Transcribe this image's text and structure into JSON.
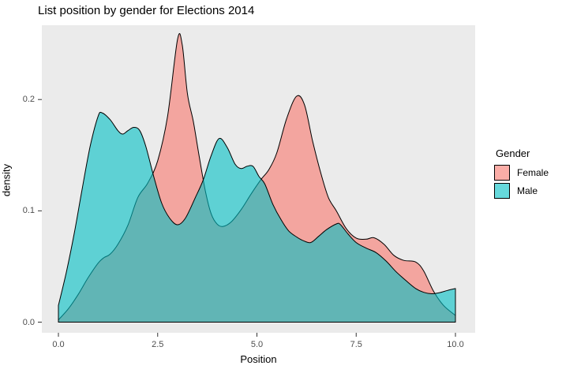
{
  "page": {
    "title": "List position by gender for Elections 2014"
  },
  "chart_data": {
    "type": "area",
    "subtype": "overlaid-density",
    "title": "List position by gender for Elections 2014",
    "xlabel": "Position",
    "ylabel": "density",
    "xlim": [
      0,
      10
    ],
    "ylim": [
      0,
      0.267
    ],
    "grid": false,
    "panel_bg": "#EBEBEB",
    "outline_color": "#000000",
    "tick_label_color": "#4d4d4d",
    "fill_alpha": 0.6,
    "x_ticks": {
      "values": [
        0,
        2.5,
        5,
        7.5,
        10
      ],
      "labels": [
        "0.0",
        "2.5",
        "5.0",
        "7.5",
        "10.0"
      ]
    },
    "y_ticks": {
      "values": [
        0,
        0.1,
        0.2
      ],
      "labels": [
        "0.0",
        "0.1",
        "0.2"
      ]
    },
    "legend": {
      "title": "Gender",
      "position": "right"
    },
    "series": [
      {
        "name": "Female",
        "color": "#F8766D",
        "points": [
          [
            0,
            0.002
          ],
          [
            0.25,
            0.012
          ],
          [
            0.5,
            0.025
          ],
          [
            0.75,
            0.04
          ],
          [
            1.0,
            0.053
          ],
          [
            1.15,
            0.058
          ],
          [
            1.3,
            0.061
          ],
          [
            1.5,
            0.07
          ],
          [
            1.75,
            0.087
          ],
          [
            2.0,
            0.112
          ],
          [
            2.25,
            0.125
          ],
          [
            2.5,
            0.145
          ],
          [
            2.75,
            0.185
          ],
          [
            3.0,
            0.254
          ],
          [
            3.12,
            0.249
          ],
          [
            3.25,
            0.205
          ],
          [
            3.4,
            0.18
          ],
          [
            3.55,
            0.148
          ],
          [
            3.7,
            0.118
          ],
          [
            3.85,
            0.097
          ],
          [
            4.0,
            0.088
          ],
          [
            4.15,
            0.086
          ],
          [
            4.35,
            0.09
          ],
          [
            4.6,
            0.101
          ],
          [
            4.85,
            0.115
          ],
          [
            5.1,
            0.128
          ],
          [
            5.3,
            0.137
          ],
          [
            5.5,
            0.152
          ],
          [
            5.75,
            0.183
          ],
          [
            6.0,
            0.203
          ],
          [
            6.2,
            0.195
          ],
          [
            6.4,
            0.163
          ],
          [
            6.6,
            0.135
          ],
          [
            6.8,
            0.112
          ],
          [
            7.0,
            0.1
          ],
          [
            7.25,
            0.084
          ],
          [
            7.5,
            0.0755
          ],
          [
            7.75,
            0.0745
          ],
          [
            7.95,
            0.0758
          ],
          [
            8.2,
            0.07
          ],
          [
            8.45,
            0.06
          ],
          [
            8.7,
            0.0555
          ],
          [
            9.0,
            0.054
          ],
          [
            9.2,
            0.046
          ],
          [
            9.45,
            0.0277
          ],
          [
            9.7,
            0.015
          ],
          [
            10,
            0.006
          ]
        ]
      },
      {
        "name": "Male",
        "color": "#00BFC4",
        "points": [
          [
            0,
            0.015
          ],
          [
            0.2,
            0.045
          ],
          [
            0.4,
            0.08
          ],
          [
            0.6,
            0.12
          ],
          [
            0.8,
            0.158
          ],
          [
            1.0,
            0.185
          ],
          [
            1.1,
            0.188
          ],
          [
            1.3,
            0.182
          ],
          [
            1.5,
            0.172
          ],
          [
            1.62,
            0.169
          ],
          [
            1.75,
            0.172
          ],
          [
            1.9,
            0.175
          ],
          [
            2.05,
            0.172
          ],
          [
            2.2,
            0.158
          ],
          [
            2.4,
            0.131
          ],
          [
            2.6,
            0.107
          ],
          [
            2.8,
            0.0935
          ],
          [
            3.0,
            0.0875
          ],
          [
            3.2,
            0.0935
          ],
          [
            3.45,
            0.112
          ],
          [
            3.65,
            0.128
          ],
          [
            3.85,
            0.15
          ],
          [
            4.05,
            0.165
          ],
          [
            4.25,
            0.157
          ],
          [
            4.45,
            0.142
          ],
          [
            4.6,
            0.138
          ],
          [
            4.75,
            0.14
          ],
          [
            4.9,
            0.14
          ],
          [
            5.05,
            0.131
          ],
          [
            5.2,
            0.124
          ],
          [
            5.4,
            0.106
          ],
          [
            5.6,
            0.0925
          ],
          [
            5.8,
            0.082
          ],
          [
            6.0,
            0.0765
          ],
          [
            6.15,
            0.0735
          ],
          [
            6.35,
            0.0715
          ],
          [
            6.55,
            0.077
          ],
          [
            6.75,
            0.083
          ],
          [
            7.0,
            0.0882
          ],
          [
            7.1,
            0.0878
          ],
          [
            7.3,
            0.079
          ],
          [
            7.5,
            0.0715
          ],
          [
            7.75,
            0.0665
          ],
          [
            8.0,
            0.0625
          ],
          [
            8.25,
            0.055
          ],
          [
            8.5,
            0.0455
          ],
          [
            8.75,
            0.0375
          ],
          [
            9.0,
            0.0302
          ],
          [
            9.2,
            0.0268
          ],
          [
            9.4,
            0.0255
          ],
          [
            9.6,
            0.0265
          ],
          [
            9.8,
            0.0285
          ],
          [
            10,
            0.0302
          ]
        ]
      }
    ]
  }
}
